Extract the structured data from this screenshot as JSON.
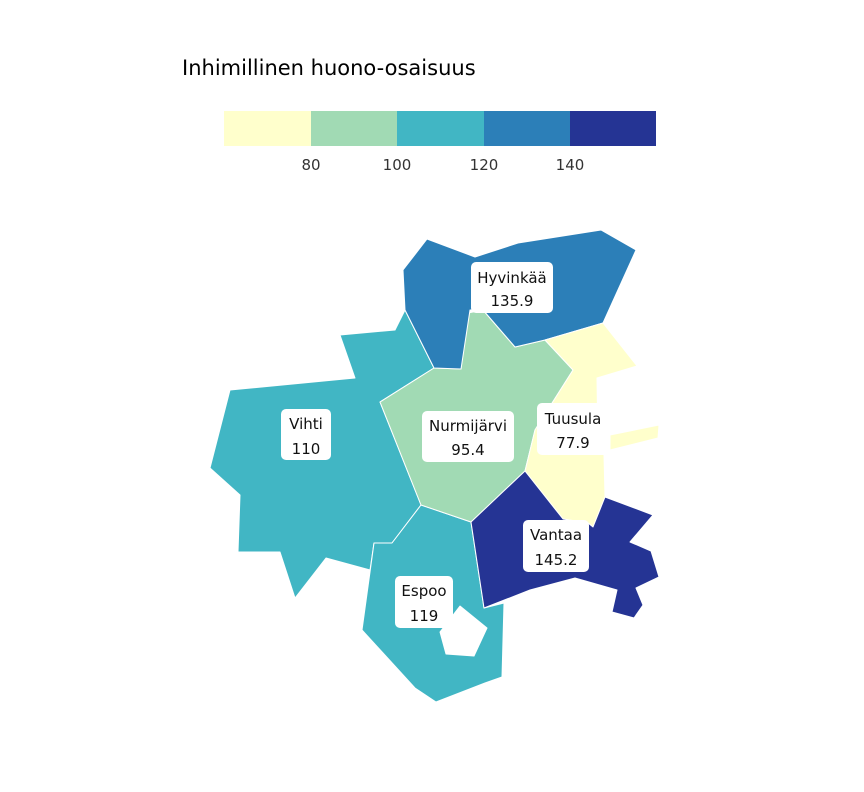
{
  "legend": {
    "title": "Inhimillinen huono-osaisuus",
    "ticks": [
      "80",
      "100",
      "120",
      "140"
    ],
    "colors": [
      "#ffffcc",
      "#a1dab4",
      "#41b6c4",
      "#2c7fb8",
      "#253494"
    ]
  },
  "regions": [
    {
      "name": "Hyvinkää",
      "value": "135.9",
      "color": "#2c7fb8"
    },
    {
      "name": "Nurmijärvi",
      "value": "95.4",
      "color": "#a1dab4"
    },
    {
      "name": "Tuusula",
      "value": "77.9",
      "color": "#ffffcc"
    },
    {
      "name": "Vihti",
      "value": "110",
      "color": "#41b6c4"
    },
    {
      "name": "Espoo",
      "value": "119",
      "color": "#41b6c4"
    },
    {
      "name": "Vantaa",
      "value": "145.2",
      "color": "#253494"
    }
  ]
}
